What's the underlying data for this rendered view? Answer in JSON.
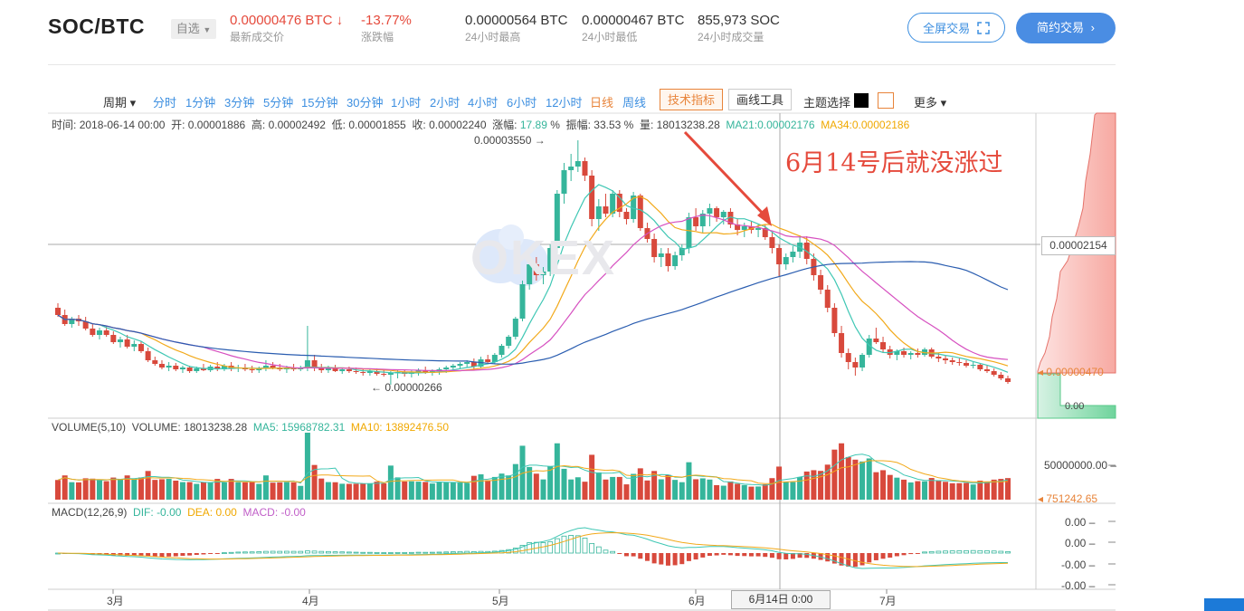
{
  "header": {
    "pair": "SOC/BTC",
    "watchlist": "自选",
    "last_price": "0.00000476 BTC",
    "last_price_arrow": "↓",
    "last_price_label": "最新成交价",
    "change": "-13.77%",
    "change_label": "涨跌幅",
    "high_24h": "0.00000564 BTC",
    "high_24h_label": "24小时最高",
    "low_24h": "0.00000467 BTC",
    "low_24h_label": "24小时最低",
    "volume_24h": "855,973 SOC",
    "volume_24h_label": "24小时成交量",
    "fullscreen_btn": "全屏交易",
    "simple_btn": "简约交易",
    "simple_btn_arrow": "›"
  },
  "toolbar": {
    "period": "周期 ▾",
    "intervals": [
      "分时",
      "1分钟",
      "3分钟",
      "5分钟",
      "15分钟",
      "30分钟",
      "1小时",
      "2小时",
      "4小时",
      "6小时",
      "12小时",
      "日线",
      "周线"
    ],
    "tech_indicator": "技术指标",
    "draw_tools": "画线工具",
    "theme": "主题选择",
    "more": "更多 ▾"
  },
  "ohlc": {
    "time_label": "时间:",
    "time": "2018-06-14  00:00",
    "open_label": "开:",
    "open": "0.00001886",
    "high_label": "高:",
    "high": "0.00002492",
    "low_label": "低:",
    "low": "0.00001855",
    "close_label": "收:",
    "close": "0.00002240",
    "change_label": "涨幅:",
    "change": "17.89",
    "amp_label": "振幅:",
    "amp": "33.53",
    "pct": "%",
    "vol_label": "量:",
    "vol": "18013238.28",
    "ma21_label": "MA21:",
    "ma21": "0.00002176",
    "ma34_label": "MA34:",
    "ma34": "0.00002186"
  },
  "annotation": "6月14号后就没涨过",
  "markers": {
    "peak": "0.00003550 →",
    "low": "← 0.00000266",
    "crosshair_price": "0.00002154",
    "last_price": "◂ 0.00000470",
    "depth_zero": "0.00",
    "watermark": "OKEX"
  },
  "volume": {
    "title": "VOLUME(5,10)",
    "vol_label": "VOLUME:",
    "vol": "18013238.28",
    "ma5_label": "MA5:",
    "ma5": "15968782.31",
    "ma10_label": "MA10:",
    "ma10": "13892476.50",
    "axis_top": "50000000.00 –",
    "axis_last": "◂ 751242.65"
  },
  "macd": {
    "title": "MACD(12,26,9)",
    "dif_label": "DIF:",
    "dif": "-0.00",
    "dea_label": "DEA:",
    "dea": "0.00",
    "macd_label": "MACD:",
    "macd": "-0.00",
    "axis": [
      "0.00 –",
      "0.00 –",
      "-0.00 –",
      "-0.00 –"
    ]
  },
  "xaxis": {
    "labels": [
      "3月",
      "4月",
      "5月",
      "6月",
      "7月"
    ],
    "crosshair_time": "6月14日  0:00"
  },
  "colors": {
    "up": "#35b59b",
    "down": "#d8493c",
    "ma_cyan": "#3fc7b4",
    "ma_gold": "#f2a91a",
    "ma_pink": "#d650c0",
    "ma_blue": "#2a5db0",
    "accent": "#3d8fe0"
  },
  "chart_data": {
    "type": "candlestick",
    "price_high_marked": "0.00003550",
    "price_low_marked": "0.00000266",
    "candles": [
      [
        1.7e-05,
        1.75e-05,
        1.6e-05,
        1.62e-05
      ],
      [
        1.62e-05,
        1.68e-05,
        1.5e-05,
        1.52e-05
      ],
      [
        1.52e-05,
        1.6e-05,
        1.48e-05,
        1.58e-05
      ],
      [
        1.58e-05,
        1.62e-05,
        1.5e-05,
        1.55e-05
      ],
      [
        1.55e-05,
        1.6e-05,
        1.45e-05,
        1.47e-05
      ],
      [
        1.47e-05,
        1.52e-05,
        1.38e-05,
        1.4e-05
      ],
      [
        1.4e-05,
        1.48e-05,
        1.35e-05,
        1.45e-05
      ],
      [
        1.45e-05,
        1.5e-05,
        1.38e-05,
        1.4e-05
      ],
      [
        1.4e-05,
        1.44e-05,
        1.3e-05,
        1.32e-05
      ],
      [
        1.32e-05,
        1.38e-05,
        1.26e-05,
        1.35e-05
      ],
      [
        1.35e-05,
        1.4e-05,
        1.25e-05,
        1.27e-05
      ],
      [
        1.27e-05,
        1.34e-05,
        1.22e-05,
        1.3e-05
      ],
      [
        1.3e-05,
        1.33e-05,
        1.2e-05,
        1.22e-05
      ],
      [
        1.22e-05,
        1.26e-05,
        1.1e-05,
        1.12e-05
      ],
      [
        1.12e-05,
        1.16e-05,
        1.06e-05,
        1.08e-05
      ],
      [
        1.08e-05,
        1.12e-05,
        1.02e-05,
        1.04e-05
      ],
      [
        1.04e-05,
        1.1e-05,
        1e-05,
        1.06e-05
      ],
      [
        1.06e-05,
        1.09e-05,
        1e-05,
        1.02e-05
      ],
      [
        1.02e-05,
        1.06e-05,
        9.8e-06,
        1.04e-05
      ],
      [
        1.04e-05,
        1.06e-05,
        9.8e-06,
        1e-05
      ],
      [
        1e-05,
        1.05e-05,
        9.8e-06,
        1.03e-05
      ],
      [
        1.03e-05,
        1.08e-05,
        1e-05,
        1.01e-05
      ],
      [
        1.01e-05,
        1.07e-05,
        9.9e-06,
        1.05e-05
      ],
      [
        1.05e-05,
        1.1e-05,
        1e-05,
        1.02e-05
      ],
      [
        1.02e-05,
        1.08e-05,
        1e-05,
        1.06e-05
      ],
      [
        1.06e-05,
        1.1e-05,
        1e-05,
        1.03e-05
      ],
      [
        1.03e-05,
        1.07e-05,
        9.9e-06,
        1.04e-05
      ],
      [
        1.04e-05,
        1.08e-05,
        1e-05,
        1.02e-05
      ],
      [
        1.02e-05,
        1.06e-05,
        9.8e-06,
        1.01e-05
      ],
      [
        1.01e-05,
        1.05e-05,
        9.8e-06,
        1.03e-05
      ],
      [
        1.03e-05,
        1.12e-05,
        1e-05,
        1.06e-05
      ],
      [
        1.06e-05,
        1.1e-05,
        1.02e-05,
        1.04e-05
      ],
      [
        1.04e-05,
        1.08e-05,
        1e-05,
        1.02e-05
      ],
      [
        1.02e-05,
        1.06e-05,
        9.8e-06,
        1.04e-05
      ],
      [
        1.04e-05,
        1.08e-05,
        1e-05,
        1.02e-05
      ],
      [
        1.02e-05,
        1.06e-05,
        1e-05,
        1.03e-05
      ],
      [
        1.03e-05,
        1.5e-05,
        1e-05,
        1.12e-05
      ],
      [
        1.12e-05,
        1.18e-05,
        1e-05,
        1.04e-05
      ],
      [
        1.04e-05,
        1.08e-05,
        9.8e-06,
        1.01e-05
      ],
      [
        1.01e-05,
        1.06e-05,
        9.8e-06,
        1.03e-05
      ],
      [
        1.03e-05,
        1.07e-05,
        9.9e-06,
        1e-05
      ],
      [
        1e-05,
        1.04e-05,
        9.7e-06,
        1.02e-05
      ],
      [
        1.02e-05,
        1.05e-05,
        9.8e-06,
        1e-05
      ],
      [
        1e-05,
        1.04e-05,
        9.7e-06,
        9.9e-06
      ],
      [
        9.9e-06,
        1.02e-05,
        9.5e-06,
        9.8e-06
      ],
      [
        9.8e-06,
        1.02e-05,
        9.5e-06,
        1e-05
      ],
      [
        1e-05,
        1.03e-05,
        9.5e-06,
        9.7e-06
      ],
      [
        9.7e-06,
        1.01e-05,
        9.4e-06,
        9.6e-06
      ],
      [
        9.6e-06,
        1e-05,
        8.5e-06,
        9.8e-06
      ],
      [
        9.8e-06,
        1.02e-05,
        9.2e-06,
        9.9e-06
      ],
      [
        9.9e-06,
        1.02e-05,
        9.4e-06,
        9.7e-06
      ],
      [
        9.7e-06,
        1.01e-05,
        9.3e-06,
        9.9e-06
      ],
      [
        9.9e-06,
        1.03e-05,
        9.5e-06,
        1.01e-05
      ],
      [
        1.01e-05,
        1.05e-05,
        9.7e-06,
        9.8e-06
      ],
      [
        9.8e-06,
        1.02e-05,
        9.5e-06,
        1e-05
      ],
      [
        1e-05,
        1.04e-05,
        9.6e-06,
        1.02e-05
      ],
      [
        1.02e-05,
        1.06e-05,
        9.8e-06,
        1.04e-05
      ],
      [
        1.04e-05,
        1.08e-05,
        1e-05,
        1.06e-05
      ],
      [
        1.06e-05,
        1.1e-05,
        1.02e-05,
        1.08e-05
      ],
      [
        1.08e-05,
        1.12e-05,
        1.04e-05,
        1.1e-05
      ],
      [
        1.1e-05,
        1.14e-05,
        1.02e-05,
        1.05e-05
      ],
      [
        1.05e-05,
        1.16e-05,
        1.03e-05,
        1.13e-05
      ],
      [
        1.13e-05,
        1.18e-05,
        1.08e-05,
        1.1e-05
      ],
      [
        1.1e-05,
        1.2e-05,
        1.08e-05,
        1.18e-05
      ],
      [
        1.18e-05,
        1.3e-05,
        1.15e-05,
        1.28e-05
      ],
      [
        1.28e-05,
        1.4e-05,
        1.25e-05,
        1.38e-05
      ],
      [
        1.38e-05,
        1.6e-05,
        1.35e-05,
        1.58e-05
      ],
      [
        1.58e-05,
        2e-05,
        1.55e-05,
        1.96e-05
      ],
      [
        1.96e-05,
        2.22e-05,
        1.9e-05,
        2.18e-05
      ],
      [
        2.18e-05,
        2.26e-05,
        2e-05,
        2.06e-05
      ],
      [
        2.06e-05,
        2.15e-05,
        1.96e-05,
        2.1e-05
      ],
      [
        2.1e-05,
        2.4e-05,
        2.05e-05,
        2.36e-05
      ],
      [
        2.36e-05,
        3e-05,
        2.3e-05,
        2.96e-05
      ],
      [
        2.96e-05,
        3.3e-05,
        2.85e-05,
        3.22e-05
      ],
      [
        3.22e-05,
        3.4e-05,
        3.1e-05,
        3.26e-05
      ],
      [
        3.26e-05,
        3.55e-05,
        3.2e-05,
        3.32e-05
      ],
      [
        3.32e-05,
        3.36e-05,
        3.1e-05,
        3.16e-05
      ],
      [
        3.16e-05,
        3.22e-05,
        2.6e-05,
        2.68e-05
      ],
      [
        2.68e-05,
        2.9e-05,
        2.55e-05,
        2.82e-05
      ],
      [
        2.82e-05,
        2.96e-05,
        2.7e-05,
        2.74e-05
      ],
      [
        2.74e-05,
        3e-05,
        2.7e-05,
        2.96e-05
      ],
      [
        2.96e-05,
        3e-05,
        2.7e-05,
        2.76e-05
      ],
      [
        2.76e-05,
        2.8e-05,
        2.62e-05,
        2.68e-05
      ],
      [
        2.68e-05,
        2.98e-05,
        2.64e-05,
        2.94e-05
      ],
      [
        2.94e-05,
        2.96e-05,
        2.55e-05,
        2.58e-05
      ],
      [
        2.58e-05,
        2.64e-05,
        2.42e-05,
        2.46e-05
      ],
      [
        2.46e-05,
        2.52e-05,
        2.2e-05,
        2.26e-05
      ],
      [
        2.26e-05,
        2.36e-05,
        2.15e-05,
        2.3e-05
      ],
      [
        2.3e-05,
        2.36e-05,
        2.1e-05,
        2.16e-05
      ],
      [
        2.16e-05,
        2.32e-05,
        2.12e-05,
        2.28e-05
      ],
      [
        2.28e-05,
        2.4e-05,
        2.22e-05,
        2.36e-05
      ],
      [
        2.36e-05,
        2.75e-05,
        2.3e-05,
        2.7e-05
      ],
      [
        2.7e-05,
        2.8e-05,
        2.55e-05,
        2.6e-05
      ],
      [
        2.6e-05,
        2.78e-05,
        2.52e-05,
        2.74e-05
      ],
      [
        2.74e-05,
        2.85e-05,
        2.6e-05,
        2.8e-05
      ],
      [
        2.8e-05,
        2.82e-05,
        2.65e-05,
        2.7e-05
      ],
      [
        2.7e-05,
        2.78e-05,
        2.62e-05,
        2.76e-05
      ],
      [
        2.76e-05,
        2.8e-05,
        2.58e-05,
        2.62e-05
      ],
      [
        2.62e-05,
        2.68e-05,
        2.5e-05,
        2.56e-05
      ],
      [
        2.56e-05,
        2.64e-05,
        2.48e-05,
        2.6e-05
      ],
      [
        2.6e-05,
        2.66e-05,
        2.52e-05,
        2.56e-05
      ],
      [
        2.56e-05,
        2.62e-05,
        2.48e-05,
        2.58e-05
      ],
      [
        2.58e-05,
        2.62e-05,
        2.45e-05,
        2.48e-05
      ],
      [
        2.48e-05,
        2.54e-05,
        2.3e-05,
        2.36e-05
      ],
      [
        2.36e-05,
        2.4e-05,
        2.05e-05,
        2.18e-05
      ],
      [
        2.18e-05,
        2.3e-05,
        2.12e-05,
        2.26e-05
      ],
      [
        2.26e-05,
        2.38e-05,
        2.2e-05,
        2.32e-05
      ],
      [
        2.32e-05,
        2.5e-05,
        2.25e-05,
        2.42e-05
      ],
      [
        2.42e-05,
        2.49e-05,
        2.18e-05,
        2.24e-05
      ],
      [
        2.24e-05,
        2.3e-05,
        2e-05,
        2.06e-05
      ],
      [
        2.06e-05,
        2.12e-05,
        1.85e-05,
        1.9e-05
      ],
      [
        1.9e-05,
        1.95e-05,
        1.65e-05,
        1.7e-05
      ],
      [
        1.7e-05,
        1.75e-05,
        1.38e-05,
        1.42e-05
      ],
      [
        1.42e-05,
        1.5e-05,
        1.15e-05,
        1.2e-05
      ],
      [
        1.2e-05,
        1.25e-05,
        1.02e-05,
        1.1e-05
      ],
      [
        1.1e-05,
        1.15e-05,
        9.5e-06,
        1.04e-05
      ],
      [
        1.04e-05,
        1.2e-05,
        1e-05,
        1.18e-05
      ],
      [
        1.18e-05,
        1.4e-05,
        1.15e-05,
        1.36e-05
      ],
      [
        1.36e-05,
        1.48e-05,
        1.3e-05,
        1.32e-05
      ],
      [
        1.32e-05,
        1.38e-05,
        1.2e-05,
        1.24e-05
      ],
      [
        1.24e-05,
        1.28e-05,
        1.14e-05,
        1.18e-05
      ],
      [
        1.18e-05,
        1.24e-05,
        1.12e-05,
        1.22e-05
      ],
      [
        1.22e-05,
        1.26e-05,
        1.15e-05,
        1.18e-05
      ],
      [
        1.18e-05,
        1.22e-05,
        1.13e-05,
        1.2e-05
      ],
      [
        1.2e-05,
        1.25e-05,
        1.15e-05,
        1.18e-05
      ],
      [
        1.18e-05,
        1.26e-05,
        1.16e-05,
        1.24e-05
      ],
      [
        1.24e-05,
        1.26e-05,
        1.14e-05,
        1.16e-05
      ],
      [
        1.16e-05,
        1.2e-05,
        1.1e-05,
        1.14e-05
      ],
      [
        1.14e-05,
        1.17e-05,
        1.08e-05,
        1.12e-05
      ],
      [
        1.12e-05,
        1.15e-05,
        1.07e-05,
        1.1e-05
      ],
      [
        1.1e-05,
        1.14e-05,
        1.06e-05,
        1.09e-05
      ],
      [
        1.09e-05,
        1.12e-05,
        1.04e-05,
        1.06e-05
      ],
      [
        1.06e-05,
        1.1e-05,
        1.03e-05,
        1.07e-05
      ],
      [
        1.07e-05,
        1.09e-05,
        1e-05,
        1.02e-05
      ],
      [
        1.02e-05,
        1.06e-05,
        9.8e-06,
        1e-05
      ],
      [
        1e-05,
        1.03e-05,
        9.4e-06,
        9.6e-06
      ],
      [
        9.6e-06,
        9.9e-06,
        9e-06,
        9.2e-06
      ],
      [
        9.2e-06,
        9.5e-06,
        8.6e-06,
        8.8e-06
      ]
    ]
  }
}
